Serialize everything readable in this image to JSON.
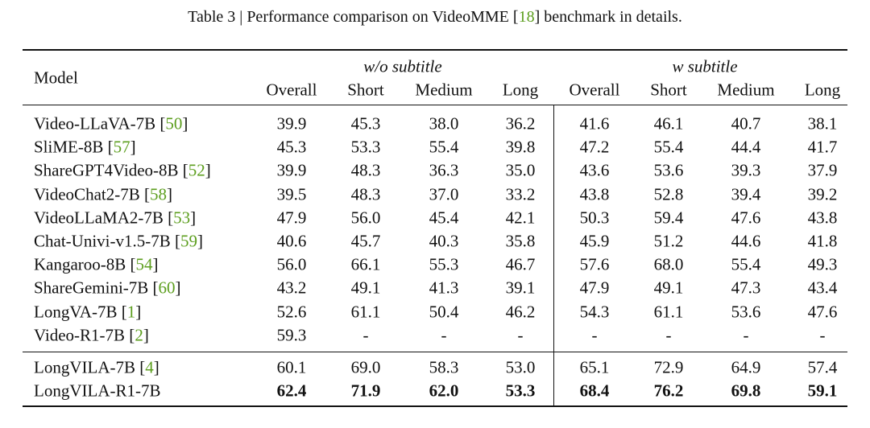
{
  "caption": {
    "label": "Table 3",
    "sep": "|",
    "before": "Performance comparison on VideoMME [",
    "ref": "18",
    "after": "] benchmark in details."
  },
  "table": {
    "model_header": "Model",
    "column_groups": [
      {
        "title": "w/o subtitle",
        "columns": [
          "Overall",
          "Short",
          "Medium",
          "Long"
        ]
      },
      {
        "title": "w subtitle",
        "columns": [
          "Overall",
          "Short",
          "Medium",
          "Long"
        ]
      }
    ],
    "sections": [
      {
        "rows": [
          {
            "name": "Video-LLaVA-7B [",
            "ref": "50",
            "close": "]",
            "values": [
              "39.9",
              "45.3",
              "38.0",
              "36.2",
              "41.6",
              "46.1",
              "40.7",
              "38.1"
            ]
          },
          {
            "name": "SliME-8B [",
            "ref": "57",
            "close": "]",
            "values": [
              "45.3",
              "53.3",
              "55.4",
              "39.8",
              "47.2",
              "55.4",
              "44.4",
              "41.7"
            ]
          },
          {
            "name": "ShareGPT4Video-8B [",
            "ref": "52",
            "close": "]",
            "values": [
              "39.9",
              "48.3",
              "36.3",
              "35.0",
              "43.6",
              "53.6",
              "39.3",
              "37.9"
            ]
          },
          {
            "name": "VideoChat2-7B [",
            "ref": "58",
            "close": "]",
            "values": [
              "39.5",
              "48.3",
              "37.0",
              "33.2",
              "43.8",
              "52.8",
              "39.4",
              "39.2"
            ]
          },
          {
            "name": "VideoLLaMA2-7B [",
            "ref": "53",
            "close": "]",
            "values": [
              "47.9",
              "56.0",
              "45.4",
              "42.1",
              "50.3",
              "59.4",
              "47.6",
              "43.8"
            ]
          },
          {
            "name": "Chat-Univi-v1.5-7B [",
            "ref": "59",
            "close": "]",
            "values": [
              "40.6",
              "45.7",
              "40.3",
              "35.8",
              "45.9",
              "51.2",
              "44.6",
              "41.8"
            ]
          },
          {
            "name": "Kangaroo-8B [",
            "ref": "54",
            "close": "]",
            "values": [
              "56.0",
              "66.1",
              "55.3",
              "46.7",
              "57.6",
              "68.0",
              "55.4",
              "49.3"
            ]
          },
          {
            "name": "ShareGemini-7B [",
            "ref": "60",
            "close": "]",
            "values": [
              "43.2",
              "49.1",
              "41.3",
              "39.1",
              "47.9",
              "49.1",
              "47.3",
              "43.4"
            ]
          },
          {
            "name": "LongVA-7B [",
            "ref": "1",
            "close": "]",
            "values": [
              "52.6",
              "61.1",
              "50.4",
              "46.2",
              "54.3",
              "61.1",
              "53.6",
              "47.6"
            ]
          },
          {
            "name": "Video-R1-7B [",
            "ref": "2",
            "close": "]",
            "values": [
              "59.3",
              "-",
              "-",
              "-",
              "-",
              "-",
              "-",
              "-"
            ]
          }
        ]
      },
      {
        "rows": [
          {
            "name": "LongVILA-7B [",
            "ref": "4",
            "close": "]",
            "values": [
              "60.1",
              "69.0",
              "58.3",
              "53.0",
              "65.1",
              "72.9",
              "64.9",
              "57.4"
            ]
          },
          {
            "name": "LongVILA-R1-7B",
            "bold": true,
            "values": [
              "62.4",
              "71.9",
              "62.0",
              "53.3",
              "68.4",
              "76.2",
              "69.8",
              "59.1"
            ]
          }
        ]
      }
    ]
  }
}
